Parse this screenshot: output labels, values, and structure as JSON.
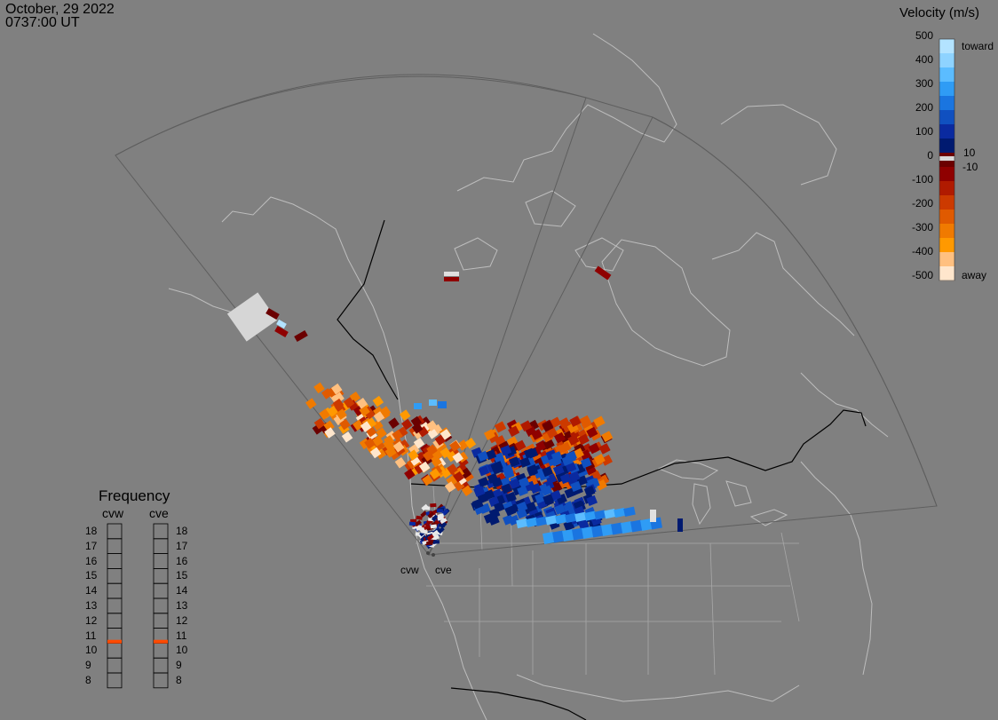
{
  "timestamp": {
    "date": "October, 29 2022",
    "time": "0737:00 UT"
  },
  "colorbar": {
    "title": "Velocity (m/s)",
    "ticks": [
      "500",
      "400",
      "300",
      "200",
      "100",
      "0",
      "-100",
      "-200",
      "-300",
      "-400",
      "-500"
    ],
    "label_toward": "toward",
    "label_away": "away",
    "near_zero_pos": "10",
    "near_zero_neg": "-10",
    "colors": [
      "#b3e3ff",
      "#8ed3ff",
      "#5bbcff",
      "#2f9cf5",
      "#1a75e0",
      "#1050c0",
      "#0a2aa0",
      "#001a70",
      "#6b0000",
      "#8f0000",
      "#b01a00",
      "#cc3a00",
      "#e05a00",
      "#f07a00",
      "#ff9900",
      "#ffc080",
      "#ffe6cc"
    ],
    "zero_color": "#d8d8d8"
  },
  "frequency_panel": {
    "title": "Frequency",
    "radar_left": "cvw",
    "radar_right": "cve",
    "scale": [
      "18",
      "17",
      "16",
      "15",
      "14",
      "13",
      "12",
      "11",
      "10",
      "9",
      "8"
    ],
    "cvw_mhz": 10.6,
    "cve_mhz": 10.6,
    "marker_color": "#ff4a00"
  },
  "radar_sites": [
    {
      "label": "cvw"
    },
    {
      "label": "cve"
    }
  ],
  "map": {
    "background": "#808080",
    "coast_color": "#bdbdbd",
    "fov_color": "#5e5e5e",
    "border_color": "#000000"
  }
}
